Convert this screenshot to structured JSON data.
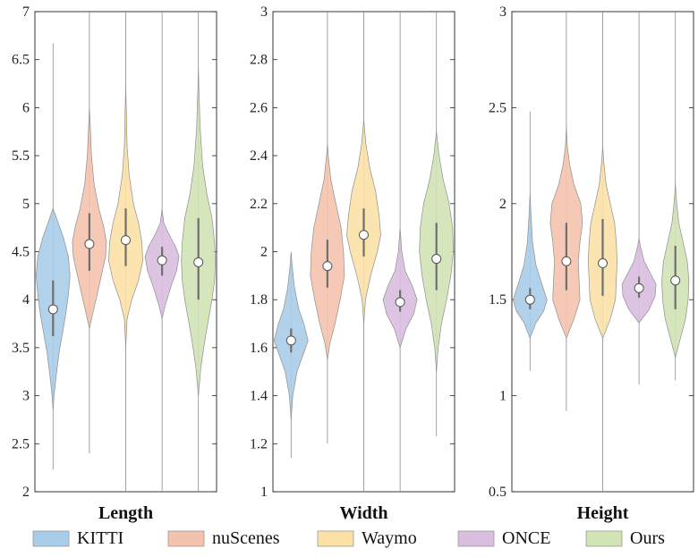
{
  "chart_data": {
    "type": "violin",
    "legend": {
      "position": "bottom",
      "entries": [
        {
          "name": "KITTI",
          "color": "#a9cde8"
        },
        {
          "name": "nuScenes",
          "color": "#f4c3ad"
        },
        {
          "name": "Waymo",
          "color": "#fbe1a6"
        },
        {
          "name": "ONCE",
          "color": "#d9bedf"
        },
        {
          "name": "Ours",
          "color": "#d2e3b5"
        }
      ]
    },
    "panels": [
      {
        "title": "Length",
        "ylim": [
          2,
          7
        ],
        "yticks": [
          2,
          2.5,
          3,
          3.5,
          4,
          4.5,
          5,
          5.5,
          6,
          6.5,
          7
        ],
        "ytick_labels": [
          "2",
          "2.5",
          "3",
          "3.5",
          "4",
          "4.5",
          "5",
          "5.5",
          "6",
          "6.5",
          "7"
        ],
        "series": [
          {
            "name": "KITTI",
            "median": 3.9,
            "q1": 3.62,
            "q3": 4.2,
            "min": 2.23,
            "max": 6.67,
            "profile": [
              [
                2.85,
                0
              ],
              [
                3.0,
                0.06
              ],
              [
                3.2,
                0.18
              ],
              [
                3.45,
                0.35
              ],
              [
                3.65,
                0.55
              ],
              [
                3.85,
                0.75
              ],
              [
                4.05,
                0.9
              ],
              [
                4.25,
                1.0
              ],
              [
                4.45,
                0.9
              ],
              [
                4.65,
                0.6
              ],
              [
                4.8,
                0.3
              ],
              [
                4.95,
                0
              ]
            ]
          },
          {
            "name": "nuScenes",
            "median": 4.58,
            "q1": 4.3,
            "q3": 4.9,
            "min": 2.4,
            "max": 7.0,
            "profile": [
              [
                3.7,
                0
              ],
              [
                3.9,
                0.25
              ],
              [
                4.05,
                0.45
              ],
              [
                4.25,
                0.7
              ],
              [
                4.45,
                0.95
              ],
              [
                4.6,
                1.0
              ],
              [
                4.75,
                0.85
              ],
              [
                4.95,
                0.55
              ],
              [
                5.2,
                0.28
              ],
              [
                5.5,
                0.12
              ],
              [
                5.8,
                0.05
              ],
              [
                6.0,
                0
              ]
            ]
          },
          {
            "name": "Waymo",
            "median": 4.62,
            "q1": 4.35,
            "q3": 4.95,
            "min": 2.0,
            "max": 7.0,
            "profile": [
              [
                3.5,
                0
              ],
              [
                3.8,
                0.08
              ],
              [
                4.0,
                0.35
              ],
              [
                4.2,
                0.75
              ],
              [
                4.4,
                1.0
              ],
              [
                4.6,
                0.95
              ],
              [
                4.8,
                0.75
              ],
              [
                5.0,
                0.45
              ],
              [
                5.3,
                0.2
              ],
              [
                5.6,
                0.08
              ],
              [
                6.0,
                0.03
              ],
              [
                6.2,
                0
              ]
            ]
          },
          {
            "name": "ONCE",
            "median": 4.41,
            "q1": 4.25,
            "q3": 4.55,
            "min": 2.0,
            "max": 7.0,
            "profile": [
              [
                3.8,
                0
              ],
              [
                3.95,
                0.2
              ],
              [
                4.15,
                0.55
              ],
              [
                4.3,
                0.85
              ],
              [
                4.45,
                1.0
              ],
              [
                4.55,
                0.8
              ],
              [
                4.7,
                0.35
              ],
              [
                4.8,
                0.1
              ],
              [
                4.95,
                0
              ]
            ]
          },
          {
            "name": "Ours",
            "median": 4.39,
            "q1": 4.0,
            "q3": 4.85,
            "min": 2.0,
            "max": 7.0,
            "profile": [
              [
                3.0,
                0
              ],
              [
                3.3,
                0.15
              ],
              [
                3.6,
                0.4
              ],
              [
                3.8,
                0.6
              ],
              [
                4.0,
                0.8
              ],
              [
                4.2,
                0.95
              ],
              [
                4.4,
                1.0
              ],
              [
                4.6,
                0.95
              ],
              [
                4.85,
                0.8
              ],
              [
                5.1,
                0.5
              ],
              [
                5.4,
                0.25
              ],
              [
                5.8,
                0.1
              ],
              [
                6.2,
                0.03
              ],
              [
                6.4,
                0
              ]
            ]
          }
        ]
      },
      {
        "title": "Width",
        "ylim": [
          1,
          3
        ],
        "yticks": [
          1,
          1.2,
          1.4,
          1.6,
          1.8,
          2,
          2.2,
          2.4,
          2.6,
          2.8,
          3
        ],
        "ytick_labels": [
          "1",
          "1.2",
          "1.4",
          "1.6",
          "1.8",
          "2",
          "2.2",
          "2.4",
          "2.6",
          "2.8",
          "3"
        ],
        "series": [
          {
            "name": "KITTI",
            "median": 1.63,
            "q1": 1.58,
            "q3": 1.68,
            "min": 1.14,
            "max": 1.99,
            "profile": [
              [
                1.3,
                0
              ],
              [
                1.4,
                0.1
              ],
              [
                1.5,
                0.35
              ],
              [
                1.58,
                0.75
              ],
              [
                1.63,
                1.0
              ],
              [
                1.7,
                0.75
              ],
              [
                1.76,
                0.45
              ],
              [
                1.85,
                0.2
              ],
              [
                1.95,
                0.05
              ],
              [
                2.0,
                0
              ]
            ]
          },
          {
            "name": "nuScenes",
            "median": 1.94,
            "q1": 1.85,
            "q3": 2.05,
            "min": 1.2,
            "max": 3.0,
            "profile": [
              [
                1.55,
                0
              ],
              [
                1.62,
                0.15
              ],
              [
                1.7,
                0.45
              ],
              [
                1.8,
                0.75
              ],
              [
                1.9,
                1.0
              ],
              [
                2.0,
                0.95
              ],
              [
                2.1,
                0.8
              ],
              [
                2.2,
                0.5
              ],
              [
                2.3,
                0.2
              ],
              [
                2.4,
                0.05
              ],
              [
                2.45,
                0
              ]
            ]
          },
          {
            "name": "Waymo",
            "median": 2.07,
            "q1": 1.98,
            "q3": 2.18,
            "min": 1.0,
            "max": 3.0,
            "profile": [
              [
                1.7,
                0
              ],
              [
                1.8,
                0.1
              ],
              [
                1.9,
                0.4
              ],
              [
                2.0,
                0.8
              ],
              [
                2.07,
                1.0
              ],
              [
                2.15,
                0.9
              ],
              [
                2.25,
                0.7
              ],
              [
                2.35,
                0.35
              ],
              [
                2.45,
                0.12
              ],
              [
                2.55,
                0
              ]
            ]
          },
          {
            "name": "ONCE",
            "median": 1.79,
            "q1": 1.75,
            "q3": 1.84,
            "min": 1.0,
            "max": 3.0,
            "profile": [
              [
                1.6,
                0
              ],
              [
                1.68,
                0.35
              ],
              [
                1.74,
                0.8
              ],
              [
                1.8,
                1.0
              ],
              [
                1.86,
                0.7
              ],
              [
                1.92,
                0.3
              ],
              [
                2.0,
                0.1
              ],
              [
                2.1,
                0
              ]
            ]
          },
          {
            "name": "Ours",
            "median": 1.97,
            "q1": 1.84,
            "q3": 2.12,
            "min": 1.23,
            "max": 3.0,
            "profile": [
              [
                1.5,
                0
              ],
              [
                1.6,
                0.1
              ],
              [
                1.7,
                0.3
              ],
              [
                1.8,
                0.6
              ],
              [
                1.9,
                0.85
              ],
              [
                2.0,
                1.0
              ],
              [
                2.1,
                0.95
              ],
              [
                2.2,
                0.75
              ],
              [
                2.3,
                0.4
              ],
              [
                2.4,
                0.15
              ],
              [
                2.5,
                0
              ]
            ]
          }
        ]
      },
      {
        "title": "Height",
        "ylim": [
          0.5,
          3
        ],
        "yticks": [
          0.5,
          1,
          1.5,
          2,
          2.5,
          3
        ],
        "ytick_labels": [
          "0.5",
          "1",
          "1.5",
          "2",
          "2.5",
          "3"
        ],
        "series": [
          {
            "name": "KITTI",
            "median": 1.5,
            "q1": 1.45,
            "q3": 1.56,
            "min": 1.13,
            "max": 2.48,
            "profile": [
              [
                1.3,
                0
              ],
              [
                1.38,
                0.35
              ],
              [
                1.44,
                0.8
              ],
              [
                1.5,
                1.0
              ],
              [
                1.58,
                0.7
              ],
              [
                1.68,
                0.35
              ],
              [
                1.8,
                0.15
              ],
              [
                1.95,
                0.05
              ],
              [
                2.05,
                0
              ]
            ]
          },
          {
            "name": "nuScenes",
            "median": 1.7,
            "q1": 1.55,
            "q3": 1.9,
            "min": 0.92,
            "max": 3.0,
            "profile": [
              [
                1.3,
                0
              ],
              [
                1.4,
                0.45
              ],
              [
                1.5,
                0.8
              ],
              [
                1.6,
                0.75
              ],
              [
                1.7,
                0.7
              ],
              [
                1.8,
                0.8
              ],
              [
                1.9,
                0.95
              ],
              [
                2.0,
                0.85
              ],
              [
                2.1,
                0.45
              ],
              [
                2.2,
                0.2
              ],
              [
                2.3,
                0.05
              ],
              [
                2.4,
                0
              ]
            ]
          },
          {
            "name": "Waymo",
            "median": 1.69,
            "q1": 1.52,
            "q3": 1.92,
            "min": 0.5,
            "max": 3.0,
            "profile": [
              [
                1.3,
                0
              ],
              [
                1.4,
                0.45
              ],
              [
                1.5,
                0.75
              ],
              [
                1.6,
                0.8
              ],
              [
                1.7,
                0.85
              ],
              [
                1.8,
                0.8
              ],
              [
                1.9,
                0.7
              ],
              [
                2.0,
                0.45
              ],
              [
                2.1,
                0.2
              ],
              [
                2.2,
                0.08
              ],
              [
                2.3,
                0
              ]
            ]
          },
          {
            "name": "ONCE",
            "median": 1.56,
            "q1": 1.51,
            "q3": 1.62,
            "min": 1.06,
            "max": 3.0,
            "profile": [
              [
                1.38,
                0
              ],
              [
                1.45,
                0.6
              ],
              [
                1.52,
                0.95
              ],
              [
                1.58,
                1.0
              ],
              [
                1.64,
                0.65
              ],
              [
                1.7,
                0.3
              ],
              [
                1.78,
                0.08
              ],
              [
                1.82,
                0
              ]
            ]
          },
          {
            "name": "Ours",
            "median": 1.6,
            "q1": 1.45,
            "q3": 1.78,
            "min": 1.08,
            "max": 3.0,
            "profile": [
              [
                1.2,
                0
              ],
              [
                1.3,
                0.3
              ],
              [
                1.4,
                0.6
              ],
              [
                1.5,
                0.75
              ],
              [
                1.6,
                0.8
              ],
              [
                1.7,
                0.7
              ],
              [
                1.8,
                0.45
              ],
              [
                1.9,
                0.2
              ],
              [
                2.0,
                0.08
              ],
              [
                2.1,
                0
              ]
            ]
          }
        ]
      }
    ]
  }
}
